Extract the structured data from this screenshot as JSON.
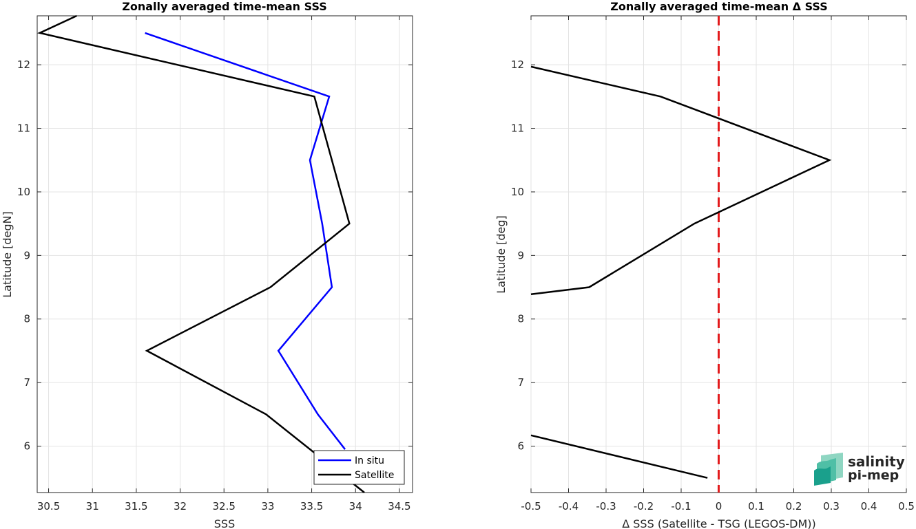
{
  "chart_data": [
    {
      "type": "line",
      "title": "Zonally averaged time-mean SSS",
      "xlabel": "SSS",
      "ylabel": "Latitude [degN]",
      "xlim": [
        30.37,
        34.65
      ],
      "ylim": [
        5.27,
        12.77
      ],
      "xticks": [
        30.5,
        31,
        31.5,
        32,
        32.5,
        33,
        33.5,
        34,
        34.5
      ],
      "xtick_labels": [
        "30.5",
        "31",
        "31.5",
        "32",
        "32.5",
        "33",
        "33.5",
        "34",
        "34.5"
      ],
      "yticks": [
        6,
        7,
        8,
        9,
        10,
        11,
        12
      ],
      "ytick_labels": [
        "6",
        "7",
        "8",
        "9",
        "10",
        "11",
        "12"
      ],
      "grid": true,
      "legend_position": "bottom-right",
      "series": [
        {
          "name": "In situ",
          "color": "#0000ff",
          "points": [
            [
              31.6,
              12.5
            ],
            [
              33.7,
              11.5
            ],
            [
              33.48,
              10.5
            ],
            [
              33.62,
              9.5
            ],
            [
              33.73,
              8.5
            ],
            [
              33.12,
              7.5
            ],
            [
              33.57,
              6.5
            ],
            [
              33.88,
              5.95
            ]
          ]
        },
        {
          "name": "Satellite",
          "color": "#000000",
          "points": [
            [
              30.82,
              12.77
            ],
            [
              30.4,
              12.5
            ],
            [
              33.53,
              11.5
            ],
            [
              33.93,
              9.5
            ],
            [
              33.03,
              8.5
            ],
            [
              31.62,
              7.5
            ],
            [
              32.98,
              6.5
            ],
            [
              34.1,
              5.27
            ]
          ]
        }
      ]
    },
    {
      "type": "line",
      "title": "Zonally averaged time-mean Δ SSS",
      "xlabel": "Δ SSS (Satellite - TSG (LEGOS-DM))",
      "ylabel": "Latitude [deg]",
      "xlim": [
        -0.5,
        0.5
      ],
      "ylim": [
        5.27,
        12.77
      ],
      "xticks": [
        -0.5,
        -0.4,
        -0.3,
        -0.2,
        -0.1,
        0,
        0.1,
        0.2,
        0.3,
        0.4,
        0.5
      ],
      "xtick_labels": [
        "-0.5",
        "-0.4",
        "-0.3",
        "-0.2",
        "-0.1",
        "0",
        "0.1",
        "0.2",
        "0.3",
        "0.4",
        "0.5"
      ],
      "yticks": [
        6,
        7,
        8,
        9,
        10,
        11,
        12
      ],
      "ytick_labels": [
        "6",
        "7",
        "8",
        "9",
        "10",
        "11",
        "12"
      ],
      "grid": true,
      "reference_line": {
        "x": 0,
        "color": "#e31a1c",
        "style": "dashed"
      },
      "series": [
        {
          "color": "#000000",
          "segments": [
            [
              [
                -0.5,
                11.97
              ],
              [
                -0.155,
                11.5
              ],
              [
                0.295,
                10.5
              ],
              [
                -0.065,
                9.5
              ],
              [
                -0.345,
                8.5
              ],
              [
                -0.5,
                8.39
              ]
            ],
            [
              [
                -0.5,
                6.17
              ],
              [
                -0.03,
                5.5
              ]
            ]
          ]
        }
      ]
    }
  ],
  "logo": {
    "line1": "salinity",
    "line2": "pi-mep",
    "color_primary": "#1aa08c",
    "color_light": "#8fd6c2"
  }
}
